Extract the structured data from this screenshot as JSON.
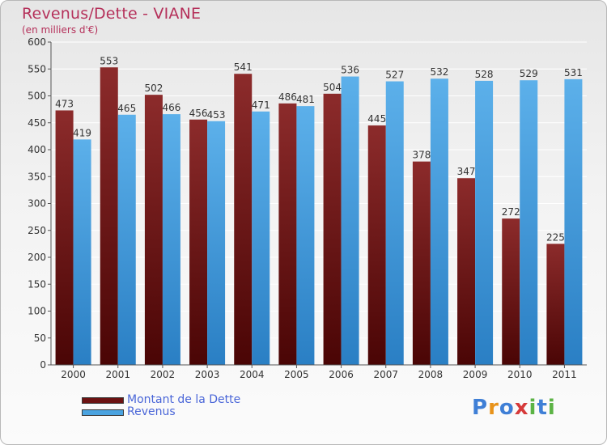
{
  "header": {
    "title": "Revenus/Dette - VIANE",
    "subtitle": "(en milliers d'€)"
  },
  "legend": {
    "items": [
      {
        "label": "Montant de la Dette",
        "color": "#6b1212"
      },
      {
        "label": "Revenus",
        "color": "#4aa3e0"
      }
    ]
  },
  "logo": {
    "text": "Proxiti",
    "letters": [
      "P",
      "r",
      "o",
      "x",
      "i",
      "t",
      "i"
    ],
    "colors": [
      "#3f7fd6",
      "#e8931a",
      "#3f7fd6",
      "#d63a3a",
      "#5bb344",
      "#3f7fd6",
      "#5bb344"
    ]
  },
  "chart_data": {
    "type": "bar",
    "title": "Revenus/Dette - VIANE",
    "subtitle": "(en milliers d'€)",
    "categories": [
      "2000",
      "2001",
      "2002",
      "2003",
      "2004",
      "2005",
      "2006",
      "2007",
      "2008",
      "2009",
      "2010",
      "2011"
    ],
    "series": [
      {
        "name": "Montant de la Dette",
        "color": "#6b1212",
        "values": [
          473,
          553,
          502,
          456,
          541,
          486,
          504,
          445,
          378,
          347,
          272,
          225
        ]
      },
      {
        "name": "Revenus",
        "color": "#4aa3e0",
        "values": [
          419,
          465,
          466,
          453,
          471,
          481,
          536,
          527,
          532,
          528,
          529,
          531
        ]
      }
    ],
    "ylim": [
      0,
      600
    ],
    "yticks": [
      0,
      50,
      100,
      150,
      200,
      250,
      300,
      350,
      400,
      450,
      500,
      550,
      600
    ],
    "grid": true,
    "legend_position": "bottom-left"
  }
}
